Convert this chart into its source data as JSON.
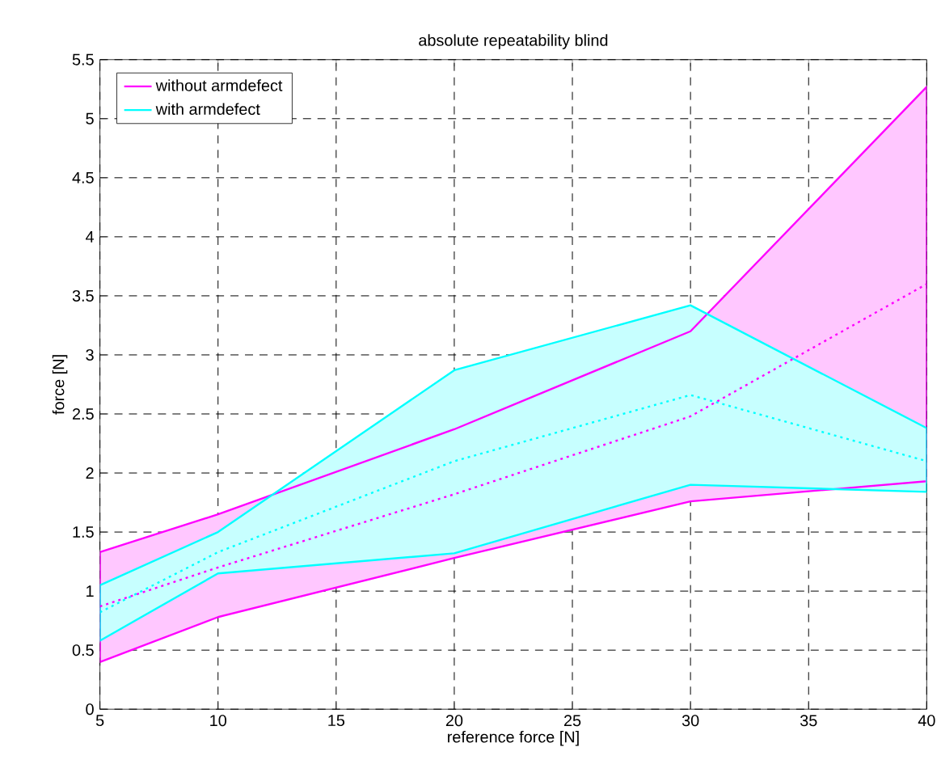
{
  "chart_data": {
    "type": "line",
    "title": "absolute repeatability blind",
    "xlabel": "reference force [N]",
    "ylabel": "force [N]",
    "x": [
      5,
      10,
      20,
      30,
      40
    ],
    "series": [
      {
        "name": "without armdefect",
        "color": "#ff00ff",
        "values": [
          0.87,
          1.2,
          1.82,
          2.48,
          3.6
        ],
        "lower": [
          0.4,
          0.78,
          1.28,
          1.76,
          1.93
        ],
        "upper": [
          1.33,
          1.65,
          2.37,
          3.2,
          5.27
        ]
      },
      {
        "name": "with armdefect",
        "color": "#00ffff",
        "values": [
          0.82,
          1.33,
          2.1,
          2.66,
          2.1
        ],
        "lower": [
          0.58,
          1.15,
          1.32,
          1.9,
          1.84
        ],
        "upper": [
          1.05,
          1.5,
          2.87,
          3.42,
          2.38
        ]
      }
    ],
    "line_style": "dotted",
    "marker": "none",
    "grid": true,
    "legend": "top left",
    "xlim": [
      5,
      40
    ],
    "xticks": [
      5,
      10,
      15,
      20,
      25,
      30,
      35,
      40
    ],
    "ylim": [
      0,
      5.5
    ],
    "yticks": [
      0,
      0.5,
      1,
      1.5,
      2,
      2.5,
      3,
      3.5,
      4,
      4.5,
      5,
      5.5
    ]
  }
}
